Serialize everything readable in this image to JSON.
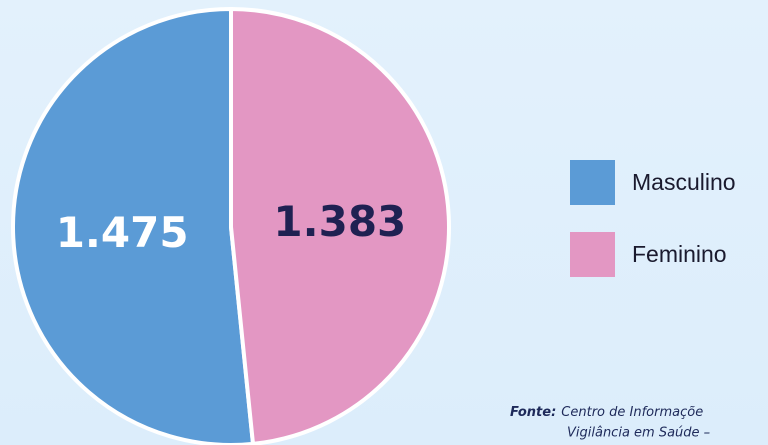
{
  "chart_data": {
    "type": "pie",
    "categories": [
      "Masculino",
      "Feminino"
    ],
    "values": [
      1475,
      1383
    ],
    "value_labels": [
      "1.475",
      "1.383"
    ],
    "colors": [
      "#5b9bd6",
      "#e397c3"
    ],
    "source_label": "Fonte:",
    "source_lines": [
      "Centro de Informaçõe",
      "Vigilância em Saúde –"
    ]
  }
}
